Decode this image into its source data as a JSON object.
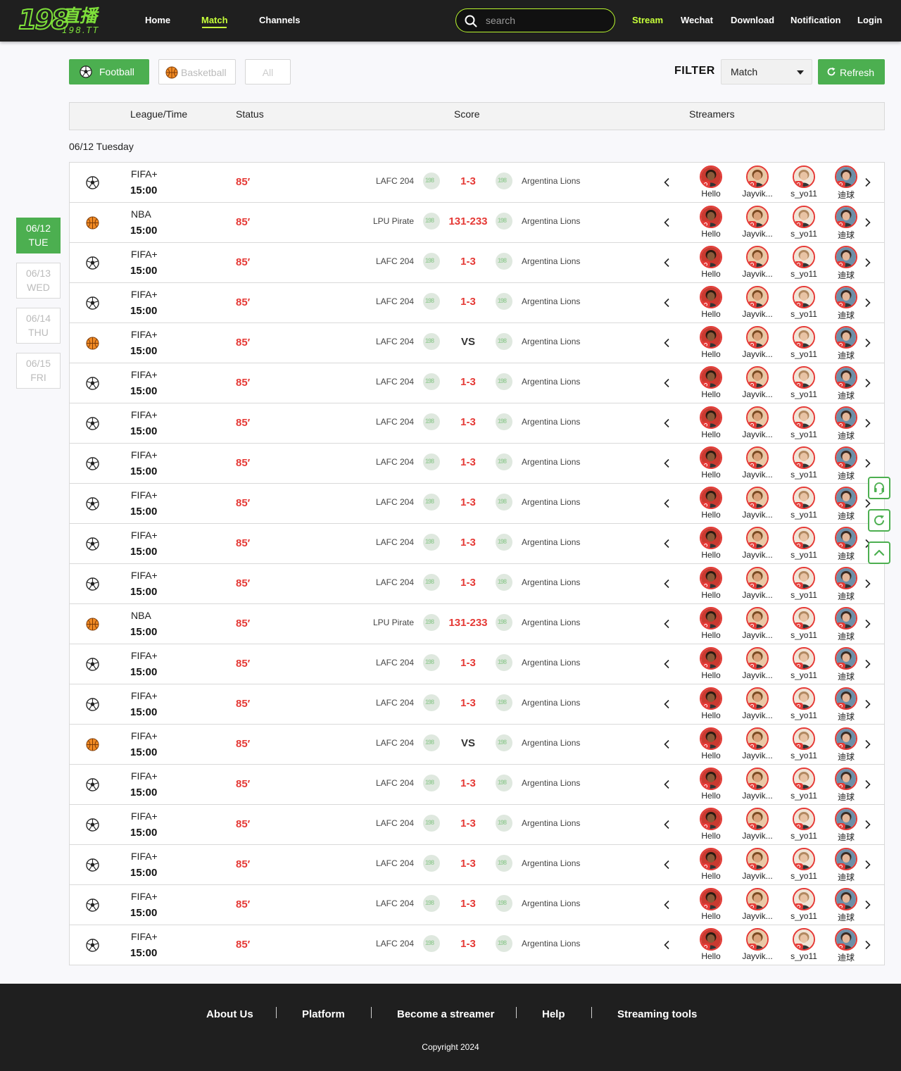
{
  "logo": {
    "number": "198",
    "name": "直播",
    "domain": "198.TT"
  },
  "nav": [
    "Home",
    "Match",
    "Channels"
  ],
  "nav_active": "Match",
  "search": {
    "placeholder": "search"
  },
  "header_links": [
    "Stream",
    "Wechat",
    "Download",
    "Notification",
    "Login"
  ],
  "sports_tabs": {
    "football": "Football",
    "basketball": "Basketball",
    "all": "All"
  },
  "filter": {
    "label": "FILTER",
    "selected": "Match",
    "refresh": "Refresh"
  },
  "table_headers": {
    "league_time": "League/Time",
    "status": "Status",
    "score": "Score",
    "streamers": "Streamers"
  },
  "date_title": "06/12 Tuesday",
  "dates": [
    {
      "date": "06/12",
      "day": "TUE",
      "active": true
    },
    {
      "date": "06/13",
      "day": "WED",
      "active": false
    },
    {
      "date": "06/14",
      "day": "THU",
      "active": false
    },
    {
      "date": "06/15",
      "day": "FRI",
      "active": false
    }
  ],
  "streamers": [
    "Hello",
    "Jayvik...",
    "s_yo11",
    "迪球"
  ],
  "matches": [
    {
      "sport": "football",
      "league": "FIFA+",
      "time": "15:00",
      "status": "85′",
      "home": "LAFC 204",
      "score": "1-3",
      "away": "Argentina Lions"
    },
    {
      "sport": "basketball",
      "league": "NBA",
      "time": "15:00",
      "status": "85′",
      "home": "LPU Pirate",
      "score": "131-233",
      "away": "Argentina Lions"
    },
    {
      "sport": "football",
      "league": "FIFA+",
      "time": "15:00",
      "status": "85′",
      "home": "LAFC 204",
      "score": "1-3",
      "away": "Argentina Lions"
    },
    {
      "sport": "football",
      "league": "FIFA+",
      "time": "15:00",
      "status": "85′",
      "home": "LAFC 204",
      "score": "1-3",
      "away": "Argentina Lions"
    },
    {
      "sport": "basketball",
      "league": "FIFA+",
      "time": "15:00",
      "status": "85′",
      "home": "LAFC 204",
      "score": "VS",
      "away": "Argentina Lions"
    },
    {
      "sport": "football",
      "league": "FIFA+",
      "time": "15:00",
      "status": "85′",
      "home": "LAFC 204",
      "score": "1-3",
      "away": "Argentina Lions"
    },
    {
      "sport": "football",
      "league": "FIFA+",
      "time": "15:00",
      "status": "85′",
      "home": "LAFC 204",
      "score": "1-3",
      "away": "Argentina Lions"
    },
    {
      "sport": "football",
      "league": "FIFA+",
      "time": "15:00",
      "status": "85′",
      "home": "LAFC 204",
      "score": "1-3",
      "away": "Argentina Lions"
    },
    {
      "sport": "football",
      "league": "FIFA+",
      "time": "15:00",
      "status": "85′",
      "home": "LAFC 204",
      "score": "1-3",
      "away": "Argentina Lions"
    },
    {
      "sport": "football",
      "league": "FIFA+",
      "time": "15:00",
      "status": "85′",
      "home": "LAFC 204",
      "score": "1-3",
      "away": "Argentina Lions"
    },
    {
      "sport": "football",
      "league": "FIFA+",
      "time": "15:00",
      "status": "85′",
      "home": "LAFC 204",
      "score": "1-3",
      "away": "Argentina Lions"
    },
    {
      "sport": "basketball",
      "league": "NBA",
      "time": "15:00",
      "status": "85′",
      "home": "LPU Pirate",
      "score": "131-233",
      "away": "Argentina Lions"
    },
    {
      "sport": "football",
      "league": "FIFA+",
      "time": "15:00",
      "status": "85′",
      "home": "LAFC 204",
      "score": "1-3",
      "away": "Argentina Lions"
    },
    {
      "sport": "football",
      "league": "FIFA+",
      "time": "15:00",
      "status": "85′",
      "home": "LAFC 204",
      "score": "1-3",
      "away": "Argentina Lions"
    },
    {
      "sport": "basketball",
      "league": "FIFA+",
      "time": "15:00",
      "status": "85′",
      "home": "LAFC 204",
      "score": "VS",
      "away": "Argentina Lions"
    },
    {
      "sport": "football",
      "league": "FIFA+",
      "time": "15:00",
      "status": "85′",
      "home": "LAFC 204",
      "score": "1-3",
      "away": "Argentina Lions"
    },
    {
      "sport": "football",
      "league": "FIFA+",
      "time": "15:00",
      "status": "85′",
      "home": "LAFC 204",
      "score": "1-3",
      "away": "Argentina Lions"
    },
    {
      "sport": "football",
      "league": "FIFA+",
      "time": "15:00",
      "status": "85′",
      "home": "LAFC 204",
      "score": "1-3",
      "away": "Argentina Lions"
    },
    {
      "sport": "football",
      "league": "FIFA+",
      "time": "15:00",
      "status": "85′",
      "home": "LAFC 204",
      "score": "1-3",
      "away": "Argentina Lions"
    },
    {
      "sport": "football",
      "league": "FIFA+",
      "time": "15:00",
      "status": "85′",
      "home": "LAFC 204",
      "score": "1-3",
      "away": "Argentina Lions"
    }
  ],
  "footer": {
    "links": [
      "About Us",
      "Platform",
      "Become a streamer",
      "Help",
      "Streaming tools"
    ],
    "copyright": "Copyright 2024"
  },
  "icons": {
    "football": "soccer-ball-icon",
    "basketball": "basketball-icon",
    "search": "search-icon",
    "refresh": "refresh-icon",
    "customer_service": "headset-icon",
    "reload": "reload-icon",
    "back_to_top": "chevron-up-icon"
  },
  "colors": {
    "accent": "#4caf50",
    "brand": "#c6ff3a",
    "score": "#e53935",
    "header_bg": "#1f1f1f"
  }
}
